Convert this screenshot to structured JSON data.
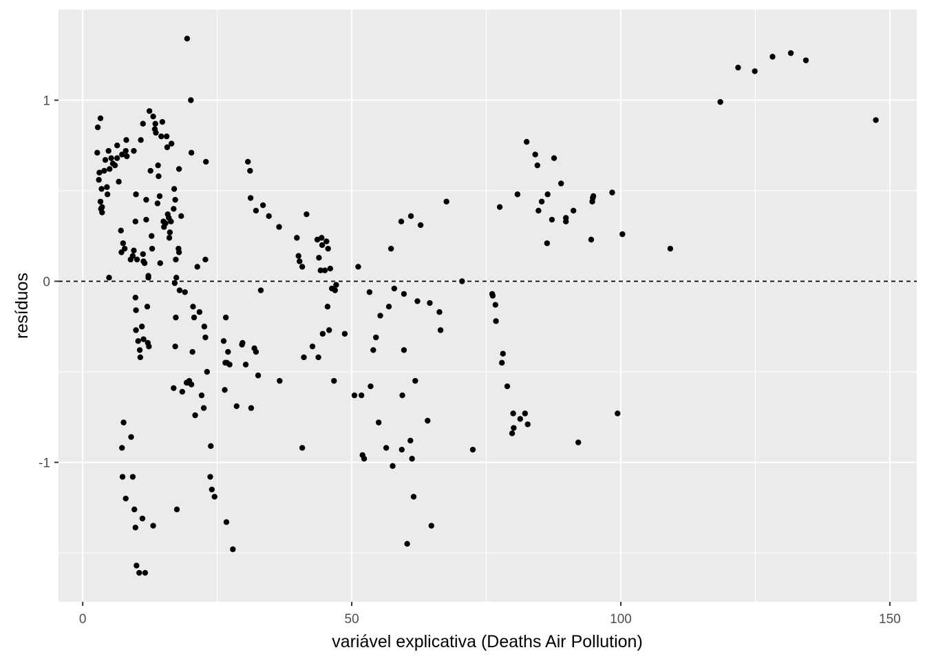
{
  "chart_data": {
    "type": "scatter",
    "title": "",
    "xlabel": "variável explicativa (Deaths Air Pollution)",
    "ylabel": "resíduos",
    "xlim": [
      -4.5,
      155
    ],
    "ylim": [
      -1.77,
      1.5
    ],
    "x_ticks": [
      0,
      50,
      100,
      150
    ],
    "x_tick_labels": [
      "0",
      "50",
      "100",
      "150"
    ],
    "y_ticks": [
      -1,
      0,
      1
    ],
    "y_tick_labels": [
      "-1",
      "0",
      "1"
    ],
    "grid": true,
    "reference_line": {
      "y": 0,
      "style": "dashed"
    },
    "colors": {
      "panel": "#ebebeb",
      "grid": "#ffffff",
      "point": "#000000",
      "tick": "#4d4d4d"
    },
    "series": [
      {
        "points": [
          [
            2.7,
            0.71
          ],
          [
            2.8,
            0.85
          ],
          [
            3.0,
            0.56
          ],
          [
            3.1,
            0.6
          ],
          [
            3.3,
            0.9
          ],
          [
            3.3,
            0.44
          ],
          [
            3.4,
            0.4
          ],
          [
            3.5,
            0.51
          ],
          [
            3.6,
            0.38
          ],
          [
            3.6,
            0.41
          ],
          [
            4.0,
            0.61
          ],
          [
            4.2,
            0.67
          ],
          [
            4.5,
            0.52
          ],
          [
            4.6,
            0.48
          ],
          [
            4.8,
            0.72
          ],
          [
            5.0,
            0.62
          ],
          [
            5.3,
            0.68
          ],
          [
            5.6,
            0.65
          ],
          [
            6.0,
            0.64
          ],
          [
            6.4,
            0.68
          ],
          [
            4.9,
            0.02
          ],
          [
            6.4,
            0.75
          ],
          [
            6.7,
            0.55
          ],
          [
            7.3,
            0.7
          ],
          [
            7.5,
            0.21
          ],
          [
            7.1,
            0.28
          ],
          [
            7.2,
            0.16
          ],
          [
            7.8,
            0.18
          ],
          [
            8.0,
            0.72
          ],
          [
            8.1,
            0.78
          ],
          [
            8.2,
            0.69
          ],
          [
            8.9,
            0.12
          ],
          [
            9.3,
            0.14
          ],
          [
            9.5,
            0.72
          ],
          [
            9.8,
            0.33
          ],
          [
            9.9,
            0.48
          ],
          [
            9.5,
            0.17
          ],
          [
            10.1,
            0.12
          ],
          [
            10.8,
            0.78
          ],
          [
            11.2,
            0.15
          ],
          [
            11.5,
            0.1
          ],
          [
            11.2,
            0.87
          ],
          [
            11.8,
            0.34
          ],
          [
            11.8,
            0.45
          ],
          [
            12.2,
            0.02
          ],
          [
            12.4,
            0.94
          ],
          [
            12.6,
            0.61
          ],
          [
            12.8,
            0.25
          ],
          [
            12.9,
            0.18
          ],
          [
            13.1,
            0.91
          ],
          [
            13.4,
            0.84
          ],
          [
            13.5,
            0.87
          ],
          [
            13.6,
            0.82
          ],
          [
            13.9,
            0.43
          ],
          [
            14.0,
            0.64
          ],
          [
            14.1,
            0.58
          ],
          [
            14.3,
            0.47
          ],
          [
            14.4,
            0.1
          ],
          [
            14.6,
            0.8
          ],
          [
            14.8,
            0.88
          ],
          [
            15.0,
            0.33
          ],
          [
            15.1,
            0.3
          ],
          [
            15.4,
            0.32
          ],
          [
            15.6,
            0.8
          ],
          [
            15.7,
            0.74
          ],
          [
            15.8,
            0.37
          ],
          [
            16.0,
            0.35
          ],
          [
            16.1,
            0.24
          ],
          [
            16.2,
            0.27
          ],
          [
            16.4,
            0.33
          ],
          [
            16.5,
            0.76
          ],
          [
            16.9,
            0.4
          ],
          [
            17.0,
            0.51
          ],
          [
            17.2,
            0.45
          ],
          [
            17.3,
            0.12
          ],
          [
            17.4,
            0.02
          ],
          [
            17.8,
            0.18
          ],
          [
            17.9,
            0.16
          ],
          [
            17.9,
            0.62
          ],
          [
            18.3,
            0.36
          ],
          [
            11.3,
            0.11
          ],
          [
            12.2,
            0.03
          ],
          [
            9.9,
            -0.27
          ],
          [
            9.9,
            -0.16
          ],
          [
            9.8,
            -0.09
          ],
          [
            10.3,
            -0.33
          ],
          [
            10.6,
            -0.38
          ],
          [
            10.7,
            -0.42
          ],
          [
            11.0,
            -0.25
          ],
          [
            11.3,
            -0.32
          ],
          [
            12.0,
            -0.14
          ],
          [
            12.1,
            -0.34
          ],
          [
            12.3,
            -0.36
          ],
          [
            7.3,
            -0.92
          ],
          [
            7.6,
            -0.78
          ],
          [
            8.0,
            -1.2
          ],
          [
            9.0,
            -0.86
          ],
          [
            9.3,
            -1.08
          ],
          [
            9.6,
            -1.26
          ],
          [
            9.8,
            -1.36
          ],
          [
            10.0,
            -1.57
          ],
          [
            10.5,
            -1.61
          ],
          [
            11.1,
            -1.31
          ],
          [
            11.6,
            -1.61
          ],
          [
            13.1,
            -1.35
          ],
          [
            7.4,
            -1.08
          ],
          [
            16.9,
            -0.59
          ],
          [
            17.1,
            -0.01
          ],
          [
            17.2,
            -0.36
          ],
          [
            17.3,
            -0.2
          ],
          [
            17.5,
            -1.26
          ],
          [
            18.0,
            -0.05
          ],
          [
            18.5,
            -0.61
          ],
          [
            19.0,
            -0.06
          ],
          [
            19.4,
            1.34
          ],
          [
            19.6,
            -0.56
          ],
          [
            19.8,
            -0.55
          ],
          [
            20.2,
            0.71
          ],
          [
            20.2,
            -0.57
          ],
          [
            20.4,
            -0.39
          ],
          [
            20.5,
            -0.14
          ],
          [
            20.7,
            -0.2
          ],
          [
            20.9,
            -0.74
          ],
          [
            21.3,
            0.08
          ],
          [
            21.7,
            -0.17
          ],
          [
            22.1,
            -0.63
          ],
          [
            22.5,
            -0.7
          ],
          [
            22.6,
            -0.25
          ],
          [
            22.8,
            0.12
          ],
          [
            22.8,
            -0.31
          ],
          [
            22.9,
            0.66
          ],
          [
            23.1,
            -0.5
          ],
          [
            23.7,
            -1.08
          ],
          [
            23.8,
            -0.91
          ],
          [
            24.0,
            -1.15
          ],
          [
            24.5,
            -1.19
          ],
          [
            19.3,
            -0.56
          ],
          [
            20.1,
            1.0
          ],
          [
            26.2,
            -0.33
          ],
          [
            26.4,
            -0.6
          ],
          [
            26.5,
            -0.45
          ],
          [
            26.6,
            -0.2
          ],
          [
            26.7,
            -1.33
          ],
          [
            26.8,
            -0.45
          ],
          [
            27.0,
            -0.39
          ],
          [
            27.3,
            -0.46
          ],
          [
            27.9,
            -1.48
          ],
          [
            28.6,
            -0.69
          ],
          [
            29.6,
            -0.35
          ],
          [
            29.7,
            -0.34
          ],
          [
            30.3,
            -0.46
          ],
          [
            30.7,
            0.66
          ],
          [
            31.1,
            0.61
          ],
          [
            31.2,
            0.46
          ],
          [
            31.3,
            -0.7
          ],
          [
            31.9,
            -0.37
          ],
          [
            32.2,
            0.39
          ],
          [
            32.2,
            -0.39
          ],
          [
            32.6,
            -0.52
          ],
          [
            33.1,
            -0.05
          ],
          [
            33.5,
            0.42
          ],
          [
            34.6,
            0.36
          ],
          [
            36.5,
            0.3
          ],
          [
            36.6,
            -0.55
          ],
          [
            39.8,
            0.24
          ],
          [
            40.1,
            0.14
          ],
          [
            40.3,
            0.11
          ],
          [
            40.8,
            0.08
          ],
          [
            41.1,
            -0.42
          ],
          [
            41.6,
            0.37
          ],
          [
            42.7,
            -0.36
          ],
          [
            43.6,
            0.23
          ],
          [
            43.8,
            -0.42
          ],
          [
            43.9,
            0.13
          ],
          [
            44.2,
            0.06
          ],
          [
            44.4,
            0.24
          ],
          [
            44.5,
            0.2
          ],
          [
            44.6,
            -0.29
          ],
          [
            45.0,
            0.06
          ],
          [
            45.3,
            0.22
          ],
          [
            45.5,
            -0.14
          ],
          [
            45.6,
            0.18
          ],
          [
            45.8,
            -0.27
          ],
          [
            46.0,
            0.07
          ],
          [
            46.3,
            -0.04
          ],
          [
            46.7,
            -0.55
          ],
          [
            46.9,
            -0.05
          ],
          [
            47.1,
            -0.02
          ],
          [
            48.7,
            -0.29
          ],
          [
            40.8,
            -0.92
          ],
          [
            50.5,
            -0.63
          ],
          [
            51.2,
            0.08
          ],
          [
            51.8,
            -0.63
          ],
          [
            52.0,
            -0.96
          ],
          [
            52.3,
            -0.98
          ],
          [
            53.3,
            -0.06
          ],
          [
            53.5,
            -0.58
          ],
          [
            54.0,
            -0.38
          ],
          [
            54.5,
            -0.31
          ],
          [
            55.0,
            -0.78
          ],
          [
            55.3,
            -0.19
          ],
          [
            56.4,
            -0.92
          ],
          [
            56.9,
            -0.14
          ],
          [
            57.3,
            0.18
          ],
          [
            57.6,
            -1.02
          ],
          [
            57.9,
            -0.04
          ],
          [
            59.2,
            0.33
          ],
          [
            59.3,
            -0.93
          ],
          [
            59.4,
            -0.63
          ],
          [
            59.7,
            -0.07
          ],
          [
            59.7,
            -0.38
          ],
          [
            60.3,
            -1.45
          ],
          [
            60.9,
            -0.88
          ],
          [
            61.0,
            0.36
          ],
          [
            61.2,
            -0.98
          ],
          [
            61.5,
            -1.19
          ],
          [
            61.8,
            -0.55
          ],
          [
            62.2,
            -0.11
          ],
          [
            62.8,
            0.31
          ],
          [
            64.1,
            -0.77
          ],
          [
            64.5,
            -0.12
          ],
          [
            64.8,
            -1.35
          ],
          [
            66.3,
            -0.17
          ],
          [
            66.5,
            -0.27
          ],
          [
            67.6,
            0.44
          ],
          [
            70.5,
            0.0
          ],
          [
            72.5,
            -0.93
          ],
          [
            76.1,
            -0.07
          ],
          [
            76.2,
            -0.08
          ],
          [
            76.7,
            -0.13
          ],
          [
            76.8,
            -0.22
          ],
          [
            77.5,
            0.41
          ],
          [
            77.9,
            -0.45
          ],
          [
            78.1,
            -0.4
          ],
          [
            78.9,
            -0.58
          ],
          [
            79.8,
            -0.84
          ],
          [
            80.0,
            -0.73
          ],
          [
            80.1,
            -0.81
          ],
          [
            80.8,
            0.48
          ],
          [
            81.3,
            -0.76
          ],
          [
            82.2,
            -0.73
          ],
          [
            82.5,
            0.77
          ],
          [
            82.7,
            -0.79
          ],
          [
            84.1,
            0.7
          ],
          [
            84.5,
            0.64
          ],
          [
            84.7,
            0.39
          ],
          [
            85.3,
            0.44
          ],
          [
            86.3,
            0.21
          ],
          [
            86.4,
            0.48
          ],
          [
            87.2,
            0.34
          ],
          [
            87.6,
            0.68
          ],
          [
            88.9,
            0.54
          ],
          [
            89.8,
            0.33
          ],
          [
            89.8,
            0.35
          ],
          [
            91.2,
            0.39
          ],
          [
            92.1,
            -0.89
          ],
          [
            94.5,
            0.23
          ],
          [
            94.7,
            0.44
          ],
          [
            94.8,
            0.46
          ],
          [
            94.9,
            0.47
          ],
          [
            98.4,
            0.49
          ],
          [
            99.4,
            -0.73
          ],
          [
            100.3,
            0.26
          ],
          [
            109.2,
            0.18
          ],
          [
            118.5,
            0.99
          ],
          [
            121.8,
            1.18
          ],
          [
            124.9,
            1.16
          ],
          [
            128.2,
            1.24
          ],
          [
            131.6,
            1.26
          ],
          [
            134.4,
            1.22
          ],
          [
            147.4,
            0.89
          ]
        ]
      }
    ]
  }
}
